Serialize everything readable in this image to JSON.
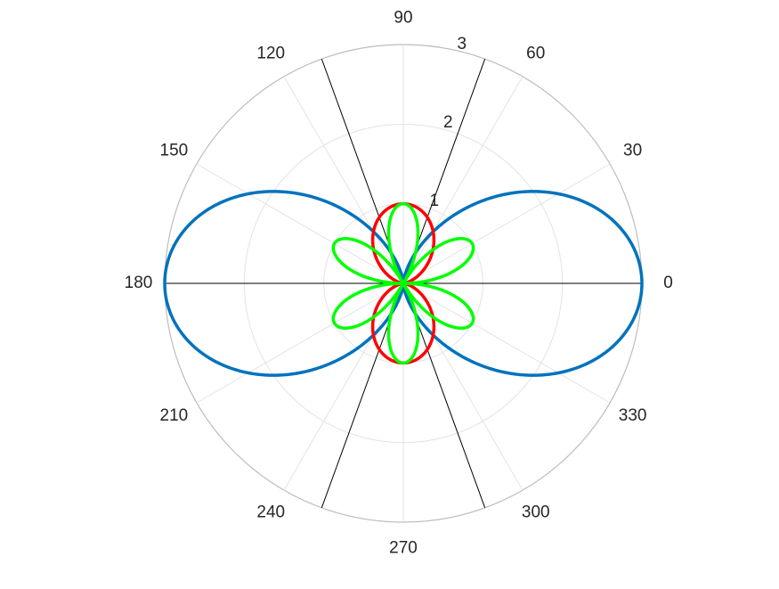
{
  "chart_data": {
    "type": "polar-line",
    "theta_unit": "degrees",
    "r_range": [
      0,
      3
    ],
    "r_ticks": [
      "1",
      "2",
      "3"
    ],
    "theta_ticks": [
      "0",
      "30",
      "60",
      "90",
      "120",
      "150",
      "180",
      "210",
      "240",
      "270",
      "300",
      "330"
    ],
    "grid": true,
    "reference_lines_deg": [
      0,
      70,
      110
    ],
    "series": [
      {
        "name": "blue-curve",
        "equation": "r = 3*cos(theta)^2 (approx. two-lobe pattern along 0/180)",
        "color": "#0072BD",
        "peak_r": 3.0,
        "peak_theta_deg": [
          0,
          180
        ]
      },
      {
        "name": "red-curve",
        "equation": "r = sin(theta)^2 (approx. two-lobe pattern along 90/270)",
        "color": "#FF0000",
        "peak_r": 1.0,
        "peak_theta_deg": [
          90,
          270
        ]
      },
      {
        "name": "green-curve",
        "equation": "r = |sin(3*theta)| (six-petal rose)",
        "color": "#00FF00",
        "peak_r": 1.0,
        "peak_theta_deg": [
          30,
          90,
          150,
          210,
          270,
          330
        ]
      }
    ]
  }
}
